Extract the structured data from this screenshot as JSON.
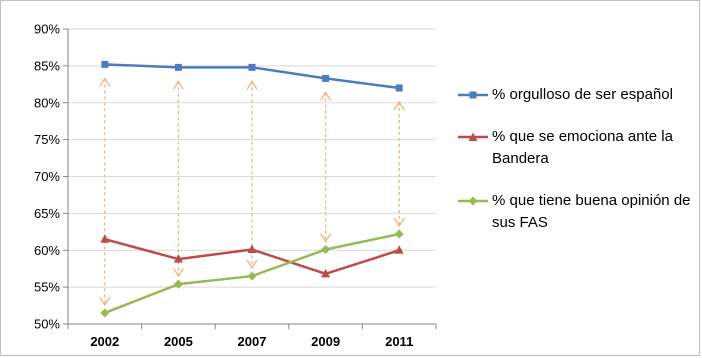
{
  "chart_data": {
    "type": "line",
    "title": "",
    "xlabel": "",
    "ylabel": "",
    "x": [
      "2002",
      "2005",
      "2007",
      "2009",
      "2011"
    ],
    "ylim": [
      50,
      90
    ],
    "yticks": [
      50,
      55,
      60,
      65,
      70,
      75,
      80,
      85,
      90
    ],
    "ytick_labels": [
      "50%",
      "55%",
      "60%",
      "65%",
      "70%",
      "75%",
      "80%",
      "85%",
      "90%"
    ],
    "grid": true,
    "legend_position": "right",
    "series": [
      {
        "name": "% orgulloso de ser español",
        "values": [
          85.2,
          84.8,
          84.8,
          83.3,
          82.0
        ],
        "color": "#4a7ebb",
        "marker": "square"
      },
      {
        "name": "% que se emociona ante la Bandera",
        "values": [
          61.5,
          58.8,
          60.1,
          56.8,
          60.0
        ],
        "color": "#be4b48",
        "marker": "triangle"
      },
      {
        "name": "% que tiene buena opinión de sus FAS",
        "values": [
          51.5,
          55.4,
          56.5,
          60.1,
          62.2
        ],
        "color": "#98b954",
        "marker": "diamond"
      }
    ],
    "annotations": {
      "type": "double-headed-dashed-arrows",
      "color": "#f4b183",
      "between_series": [
        "% orgulloso de ser español",
        "% que tiene buena opinión de sus FAS"
      ]
    }
  }
}
